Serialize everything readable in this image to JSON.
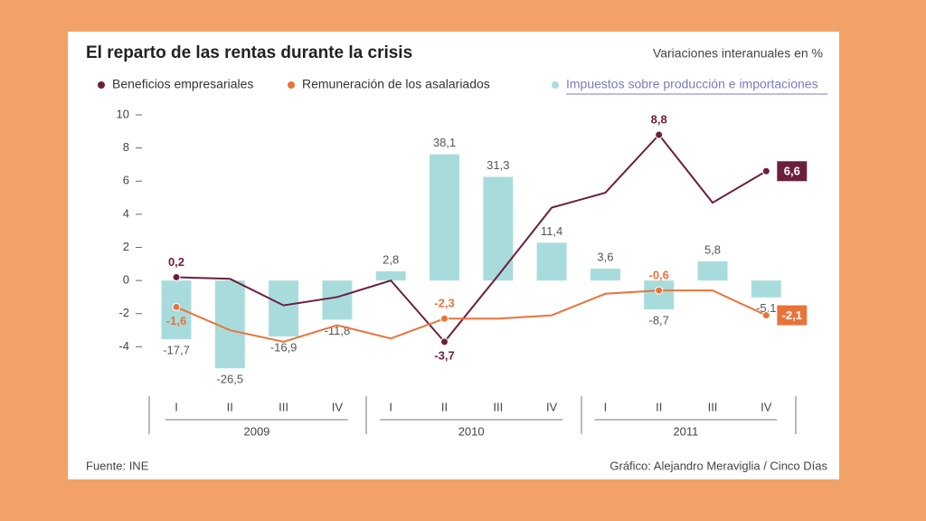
{
  "chart_data": {
    "type": "bar-line",
    "title": "El reparto de las rentas durante la crisis",
    "subtitle": "Variaciones interanuales en %",
    "categories": [
      "I",
      "II",
      "III",
      "IV",
      "I",
      "II",
      "III",
      "IV",
      "I",
      "II",
      "III",
      "IV"
    ],
    "years": [
      "2009",
      "2010",
      "2011"
    ],
    "ylim": [
      -6,
      10
    ],
    "yticks": [
      10,
      8,
      6,
      4,
      2,
      0,
      -2,
      -4
    ],
    "y2lim": [
      -30,
      50
    ],
    "series": [
      {
        "name": "Beneficios empresariales",
        "type": "line",
        "color": "#6b1f3d",
        "values": [
          0.2,
          0.1,
          -1.5,
          -1.0,
          0.0,
          -3.7,
          0.3,
          4.4,
          5.3,
          8.8,
          4.7,
          6.6
        ],
        "value_labels": [
          "0,2",
          null,
          null,
          null,
          null,
          "-3,7",
          null,
          null,
          null,
          "8,8",
          null,
          "6,6"
        ]
      },
      {
        "name": "Remuneración de los asalariados",
        "type": "line",
        "color": "#e8743b",
        "values": [
          -1.6,
          -3.0,
          -3.7,
          -2.7,
          -3.5,
          -2.3,
          -2.3,
          -2.1,
          -0.8,
          -0.6,
          -0.6,
          -2.1
        ],
        "value_labels": [
          "-1,6",
          null,
          null,
          null,
          null,
          "-2,3",
          null,
          null,
          null,
          "-0,6",
          null,
          "-2,1"
        ]
      },
      {
        "name": "Impuestos sobre producción e importaciones",
        "type": "bar",
        "axis": "y2",
        "color": "#a8dcdc",
        "values": [
          -17.7,
          -26.5,
          -16.9,
          -11.8,
          2.8,
          38.1,
          31.3,
          11.4,
          3.6,
          -8.7,
          5.8,
          -5.1
        ],
        "value_labels": [
          "-17,7",
          "-26,5",
          "-16,9",
          "-11,8",
          "2,8",
          "38,1",
          "31,3",
          "11,4",
          "3,6",
          "-8,7",
          "5,8",
          "-5,1"
        ]
      }
    ],
    "source": "Fuente: INE",
    "credit": "Gráfico: Alejandro Meraviglia / Cinco Días"
  }
}
